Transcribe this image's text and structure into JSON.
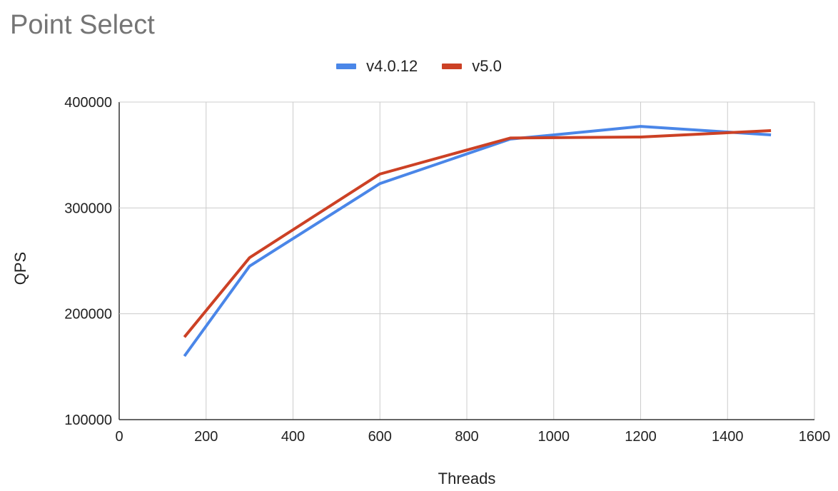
{
  "chart_data": {
    "type": "line",
    "title": "Point Select",
    "xlabel": "Threads",
    "ylabel": "QPS",
    "xlim": [
      0,
      1600
    ],
    "ylim": [
      100000,
      400000
    ],
    "xticks": [
      0,
      200,
      400,
      600,
      800,
      1000,
      1200,
      1400,
      1600
    ],
    "yticks": [
      100000,
      200000,
      300000,
      400000
    ],
    "xtick_labels": [
      "0",
      "200",
      "400",
      "600",
      "800",
      "1000",
      "1200",
      "1400",
      "1600"
    ],
    "ytick_labels": [
      "100000",
      "200000",
      "300000",
      "400000"
    ],
    "grid": true,
    "legend": "top-center",
    "x": [
      150,
      300,
      600,
      900,
      1200,
      1500
    ],
    "series": [
      {
        "name": "v4.0.12",
        "color": "#4a86e8",
        "values": [
          160000,
          245000,
          323000,
          365000,
          377000,
          369000
        ]
      },
      {
        "name": "v5.0",
        "color": "#cc4125",
        "values": [
          178000,
          253000,
          332000,
          366000,
          367000,
          373000
        ]
      }
    ]
  }
}
